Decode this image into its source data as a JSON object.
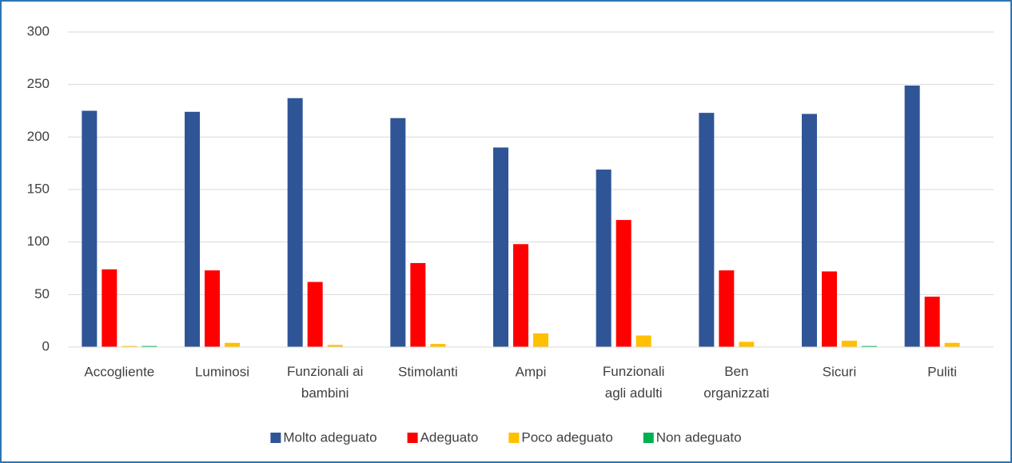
{
  "chart_data": {
    "type": "bar",
    "categories": [
      "Accogliente",
      "Luminosi",
      "Funzionali ai bambini",
      "Stimolanti",
      "Ampi",
      "Funzionali agli adulti",
      "Ben organizzati",
      "Sicuri",
      "Puliti"
    ],
    "series": [
      {
        "name": "Molto adeguato",
        "color": "#2f5597",
        "values": [
          225,
          224,
          237,
          218,
          190,
          169,
          223,
          222,
          249
        ]
      },
      {
        "name": "Adeguato",
        "color": "#ff0000",
        "values": [
          74,
          73,
          62,
          80,
          98,
          121,
          73,
          72,
          48
        ]
      },
      {
        "name": "Poco adeguato",
        "color": "#ffc000",
        "values": [
          1,
          4,
          2,
          3,
          13,
          11,
          5,
          6,
          4
        ]
      },
      {
        "name": "Non adeguato",
        "color": "#00b050",
        "values": [
          1,
          0,
          0,
          0,
          0,
          0,
          0,
          1,
          0
        ]
      }
    ],
    "ylim": [
      0,
      300
    ],
    "yticks": [
      0,
      50,
      100,
      150,
      200,
      250,
      300
    ],
    "grid": true,
    "legend": "bottom"
  }
}
